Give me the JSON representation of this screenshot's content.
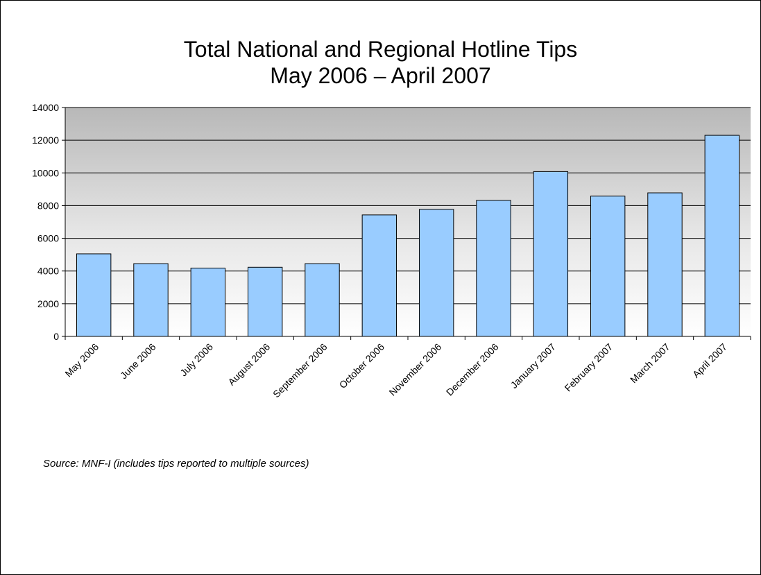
{
  "chart_data": {
    "type": "bar",
    "title": "Total National and Regional Hotline Tips",
    "subtitle": "May 2006 – April 2007",
    "xlabel": "",
    "ylabel": "",
    "ylim": [
      0,
      14000
    ],
    "yticks": [
      0,
      2000,
      4000,
      6000,
      8000,
      10000,
      12000,
      14000
    ],
    "grid": true,
    "legend": "none",
    "categories": [
      "May 2006",
      "June 2006",
      "July 2006",
      "August 2006",
      "September 2006",
      "October 2006",
      "November 2006",
      "December 2006",
      "January 2007",
      "February 2007",
      "March 2007",
      "April 2007"
    ],
    "values": [
      5050,
      4450,
      4180,
      4230,
      4450,
      7430,
      7770,
      8320,
      10080,
      8580,
      8780,
      12300
    ],
    "bar_color": "#99ccff",
    "source": "Source: MNF-I (includes tips reported to multiple sources)"
  }
}
